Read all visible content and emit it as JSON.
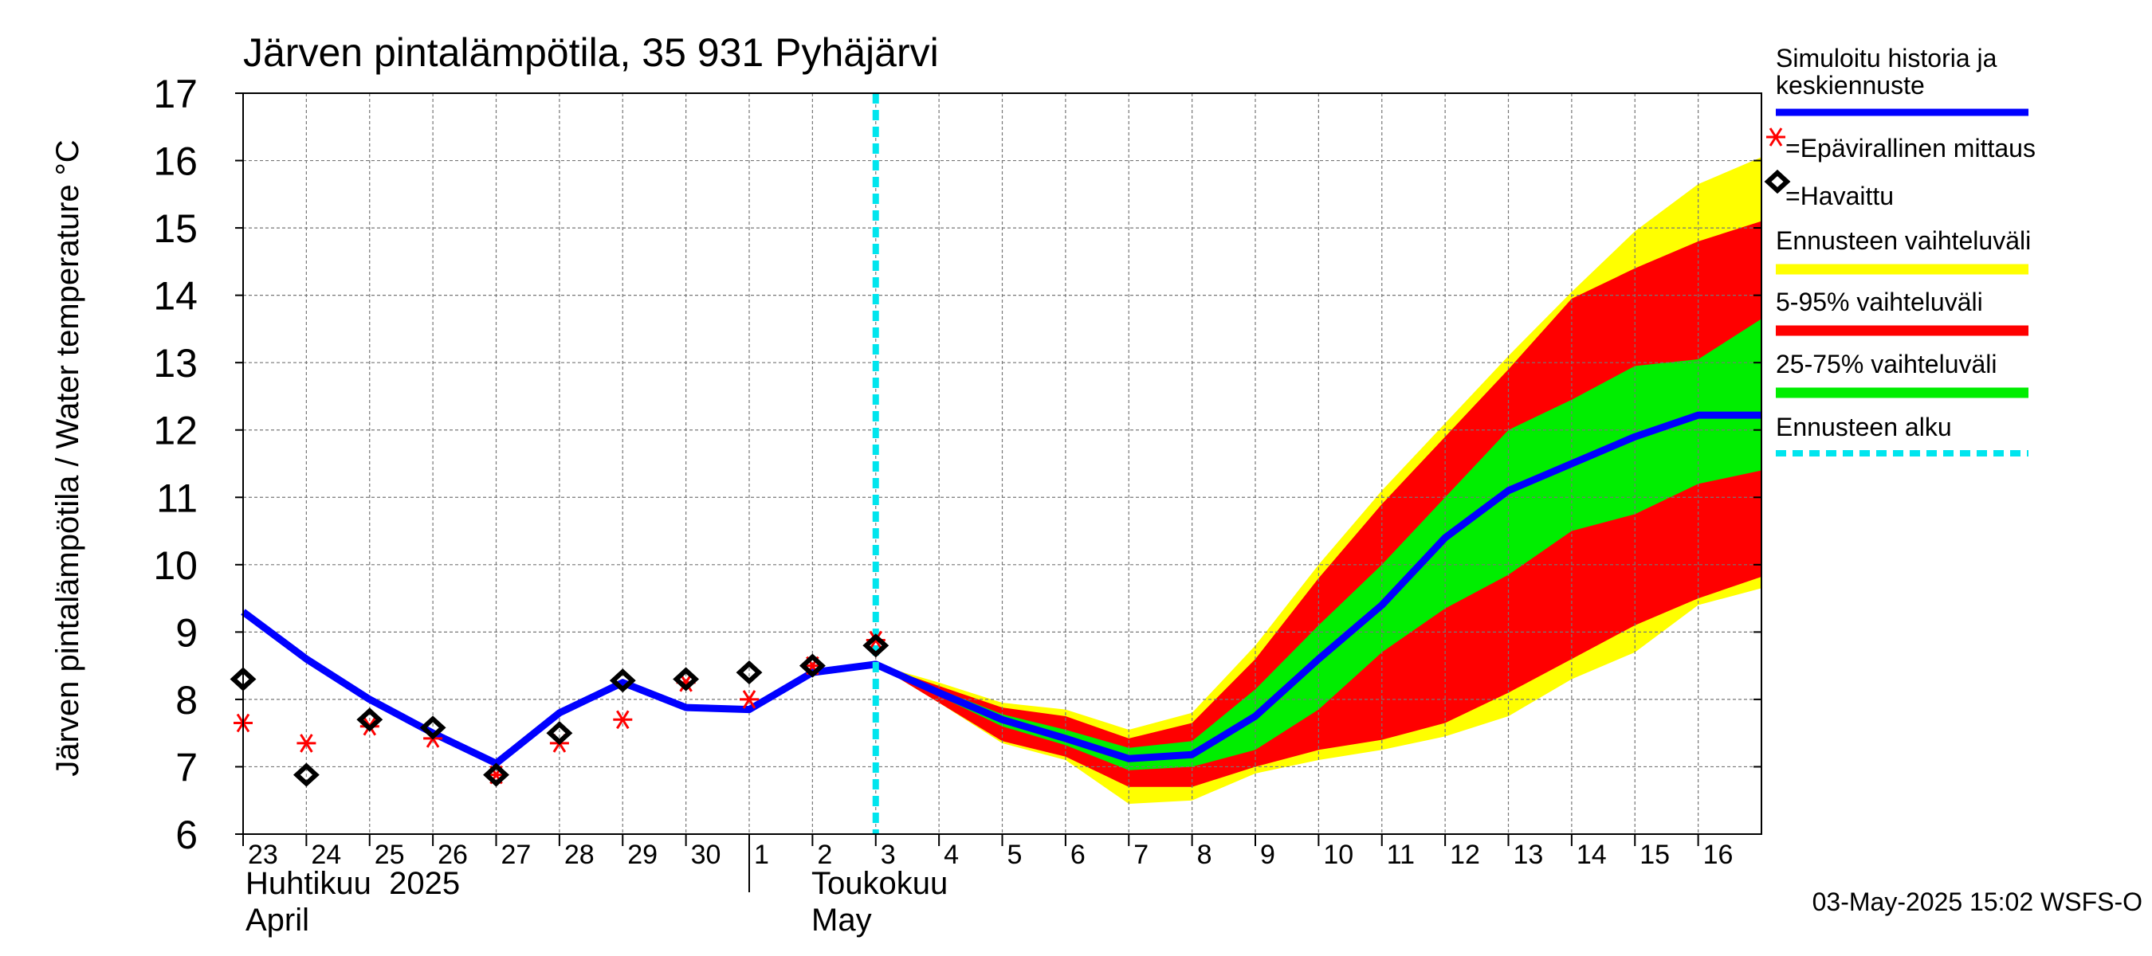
{
  "chart_data": {
    "type": "line",
    "title": "Järven pintalämpötila, 35 931 Pyhäjärvi",
    "ylabel": "Järven pintalämpötila / Water temperature °C",
    "ylim": [
      6,
      17
    ],
    "yticks": [
      6,
      7,
      8,
      9,
      10,
      11,
      12,
      13,
      14,
      15,
      16,
      17
    ],
    "xlim": [
      "2025-04-23",
      "2025-05-17"
    ],
    "day_labels": [
      "23",
      "24",
      "25",
      "26",
      "27",
      "28",
      "29",
      "30",
      "1",
      "2",
      "3",
      "4",
      "5",
      "6",
      "7",
      "8",
      "9",
      "10",
      "11",
      "12",
      "13",
      "14",
      "15",
      "16"
    ],
    "month_labels": [
      {
        "fi": "Huhtikuu  2025",
        "en": "April"
      },
      {
        "fi": "Toukokuu",
        "en": "May"
      }
    ],
    "forecast_start": "2025-05-03",
    "timestamp": "03-May-2025 15:02 WSFS-O",
    "legend": {
      "simulated": "Simuloitu historia ja keskiennuste",
      "simulated_line1": "Simuloitu historia ja",
      "simulated_line2": "keskiennuste",
      "unofficial": "=Epävirallinen mittaus",
      "observed": "=Havaittu",
      "range": "Ennusteen vaihteluväli",
      "p5_95": "5-95% vaihteluväli",
      "p25_75": "25-75% vaihteluväli",
      "forecast_start": "Ennusteen alku"
    },
    "colors": {
      "simulated": "#0000ff",
      "unofficial": "#ff0000",
      "observed": "#000000",
      "range": "#ffff00",
      "p5_95": "#ff0000",
      "p25_75": "#00ee00",
      "forecast_start": "#00e5ee",
      "grid": "#777777"
    },
    "series": [
      {
        "name": "Simuloitu historia ja keskiennuste",
        "x": [
          "2025-04-23",
          "2025-04-24",
          "2025-04-25",
          "2025-04-26",
          "2025-04-27",
          "2025-04-28",
          "2025-04-29",
          "2025-04-30",
          "2025-05-01",
          "2025-05-02",
          "2025-05-03",
          "2025-05-04",
          "2025-05-05",
          "2025-05-06",
          "2025-05-07",
          "2025-05-08",
          "2025-05-09",
          "2025-05-10",
          "2025-05-11",
          "2025-05-12",
          "2025-05-13",
          "2025-05-14",
          "2025-05-15",
          "2025-05-16",
          "2025-05-17"
        ],
        "values": [
          9.3,
          8.6,
          8.0,
          7.5,
          7.05,
          7.8,
          8.25,
          7.88,
          7.85,
          8.4,
          8.52,
          8.1,
          7.7,
          7.42,
          7.12,
          7.18,
          7.75,
          8.6,
          9.4,
          10.4,
          11.1,
          11.5,
          11.9,
          12.22,
          12.22
        ]
      },
      {
        "name": "=Epävirallinen mittaus",
        "x": [
          "2025-04-23",
          "2025-04-24",
          "2025-04-25",
          "2025-04-26",
          "2025-04-27",
          "2025-04-28",
          "2025-04-29",
          "2025-04-30",
          "2025-05-01",
          "2025-05-02",
          "2025-05-03"
        ],
        "values": [
          7.65,
          7.35,
          7.6,
          7.42,
          6.88,
          7.35,
          7.7,
          8.25,
          8.0,
          8.5,
          8.88
        ]
      },
      {
        "name": "=Havaittu",
        "x": [
          "2025-04-23",
          "2025-04-24",
          "2025-04-25",
          "2025-04-26",
          "2025-04-27",
          "2025-04-28",
          "2025-04-29",
          "2025-04-30",
          "2025-05-01",
          "2025-05-02",
          "2025-05-03"
        ],
        "values": [
          8.3,
          6.88,
          7.7,
          7.58,
          6.88,
          7.5,
          8.28,
          8.3,
          8.4,
          8.5,
          8.8
        ]
      }
    ],
    "bands": {
      "x": [
        "2025-05-03",
        "2025-05-04",
        "2025-05-05",
        "2025-05-06",
        "2025-05-07",
        "2025-05-08",
        "2025-05-09",
        "2025-05-10",
        "2025-05-11",
        "2025-05-12",
        "2025-05-13",
        "2025-05-14",
        "2025-05-15",
        "2025-05-16",
        "2025-05-17"
      ],
      "range": {
        "low": [
          8.52,
          7.95,
          7.35,
          7.1,
          6.45,
          6.5,
          6.9,
          7.1,
          7.25,
          7.45,
          7.75,
          8.3,
          8.7,
          9.4,
          9.65
        ],
        "high": [
          8.52,
          8.25,
          7.95,
          7.85,
          7.55,
          7.8,
          8.8,
          10.0,
          11.1,
          12.1,
          13.1,
          14.05,
          14.95,
          15.65,
          16.05
        ]
      },
      "p5_95": {
        "low": [
          8.52,
          7.95,
          7.38,
          7.15,
          6.7,
          6.7,
          7.0,
          7.25,
          7.4,
          7.65,
          8.1,
          8.6,
          9.1,
          9.5,
          9.82
        ]
      },
      "p5_95_high": [
        8.52,
        8.2,
        7.88,
        7.75,
        7.42,
        7.65,
        8.6,
        9.8,
        10.9,
        11.9,
        12.9,
        13.95,
        14.4,
        14.8,
        15.1
      ],
      "p25_75": {
        "low": [
          8.52,
          8.05,
          7.6,
          7.32,
          6.95,
          7.0,
          7.25,
          7.85,
          8.7,
          9.35,
          9.85,
          10.5,
          10.75,
          11.2,
          11.4
        ],
        "high": [
          8.52,
          8.15,
          7.78,
          7.55,
          7.28,
          7.38,
          8.15,
          9.1,
          10.0,
          11.0,
          12.0,
          12.45,
          12.95,
          13.05,
          13.65
        ]
      }
    },
    "grid": true,
    "legend_position": "right"
  }
}
